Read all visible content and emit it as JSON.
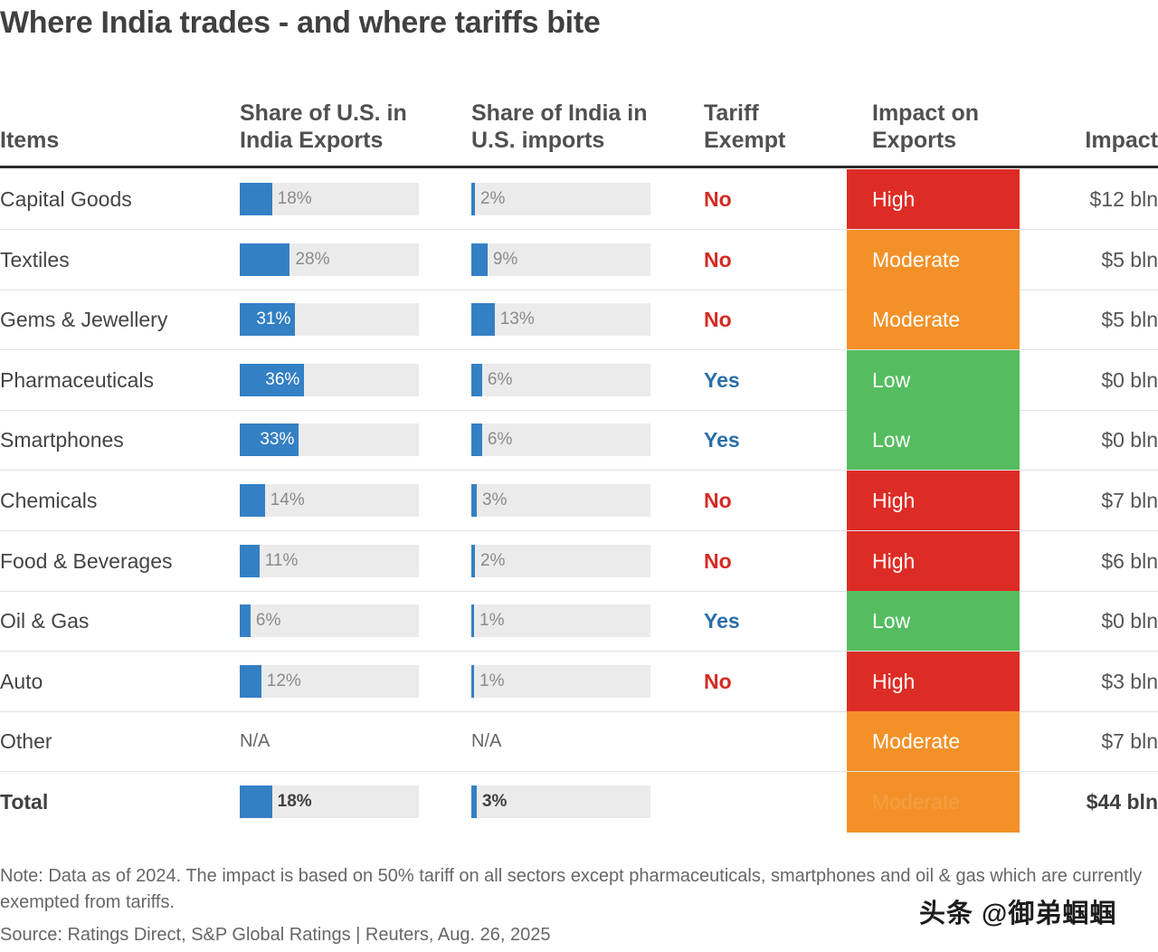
{
  "title": "Where India trades - and where tariffs bite",
  "headers": {
    "items": "Items",
    "us_share": [
      "Share of U.S. in",
      "India Exports"
    ],
    "india_share": [
      "Share of India in",
      "U.S. imports"
    ],
    "tariff_exempt": [
      "Tariff",
      "Exempt"
    ],
    "impact_on_exports": [
      "Impact on",
      "Exports"
    ],
    "impact": "Impact"
  },
  "colors": {
    "bar": "#3480c4",
    "bar_track": "#ebebeb",
    "no": "#d42a22",
    "yes": "#2a6ea8",
    "High": "#dd2c25",
    "Moderate": "#f39128",
    "Low": "#55bd5f"
  },
  "chart_data": {
    "type": "table",
    "title": "Where India trades - and where tariffs bite",
    "columns": [
      "Items",
      "Share of U.S. in India Exports",
      "Share of India in U.S. imports",
      "Tariff Exempt",
      "Impact on Exports",
      "Impact"
    ],
    "rows": [
      {
        "item": "Capital Goods",
        "us_share": 18,
        "us_share_label": "18%",
        "india_share": 2,
        "india_share_label": "2%",
        "exempt": "No",
        "impact_level": "High",
        "impact": "$12 bln"
      },
      {
        "item": "Textiles",
        "us_share": 28,
        "us_share_label": "28%",
        "india_share": 9,
        "india_share_label": "9%",
        "exempt": "No",
        "impact_level": "Moderate",
        "impact": "$5 bln"
      },
      {
        "item": "Gems & Jewellery",
        "us_share": 31,
        "us_share_label": "31%",
        "india_share": 13,
        "india_share_label": "13%",
        "exempt": "No",
        "impact_level": "Moderate",
        "impact": "$5 bln"
      },
      {
        "item": "Pharmaceuticals",
        "us_share": 36,
        "us_share_label": "36%",
        "india_share": 6,
        "india_share_label": "6%",
        "exempt": "Yes",
        "impact_level": "Low",
        "impact": "$0 bln"
      },
      {
        "item": "Smartphones",
        "us_share": 33,
        "us_share_label": "33%",
        "india_share": 6,
        "india_share_label": "6%",
        "exempt": "Yes",
        "impact_level": "Low",
        "impact": "$0 bln"
      },
      {
        "item": "Chemicals",
        "us_share": 14,
        "us_share_label": "14%",
        "india_share": 3,
        "india_share_label": "3%",
        "exempt": "No",
        "impact_level": "High",
        "impact": "$7 bln"
      },
      {
        "item": "Food & Beverages",
        "us_share": 11,
        "us_share_label": "11%",
        "india_share": 2,
        "india_share_label": "2%",
        "exempt": "No",
        "impact_level": "High",
        "impact": "$6 bln"
      },
      {
        "item": "Oil & Gas",
        "us_share": 6,
        "us_share_label": "6%",
        "india_share": 1,
        "india_share_label": "1%",
        "exempt": "Yes",
        "impact_level": "Low",
        "impact": "$0 bln"
      },
      {
        "item": "Auto",
        "us_share": 12,
        "us_share_label": "12%",
        "india_share": 1,
        "india_share_label": "1%",
        "exempt": "No",
        "impact_level": "High",
        "impact": "$3 bln"
      },
      {
        "item": "Other",
        "us_share": null,
        "us_share_label": "N/A",
        "india_share": null,
        "india_share_label": "N/A",
        "exempt": "",
        "impact_level": "Moderate",
        "impact": "$7 bln"
      }
    ],
    "total": {
      "item": "Total",
      "us_share": 18,
      "us_share_label": "18%",
      "india_share": 3,
      "india_share_label": "3%",
      "exempt": "",
      "impact_level": "Moderate",
      "impact": "$44 bln"
    },
    "bar_scale_max": 100
  },
  "note": "Note: Data as of 2024. The impact is based on 50% tariff on all sectors except pharmaceuticals, smartphones and oil & gas which are currently exempted from tariffs.",
  "source": "Source: Ratings Direct, S&P Global Ratings | Reuters, Aug. 26, 2025",
  "watermark": "头条 @御弟蝈蝈"
}
